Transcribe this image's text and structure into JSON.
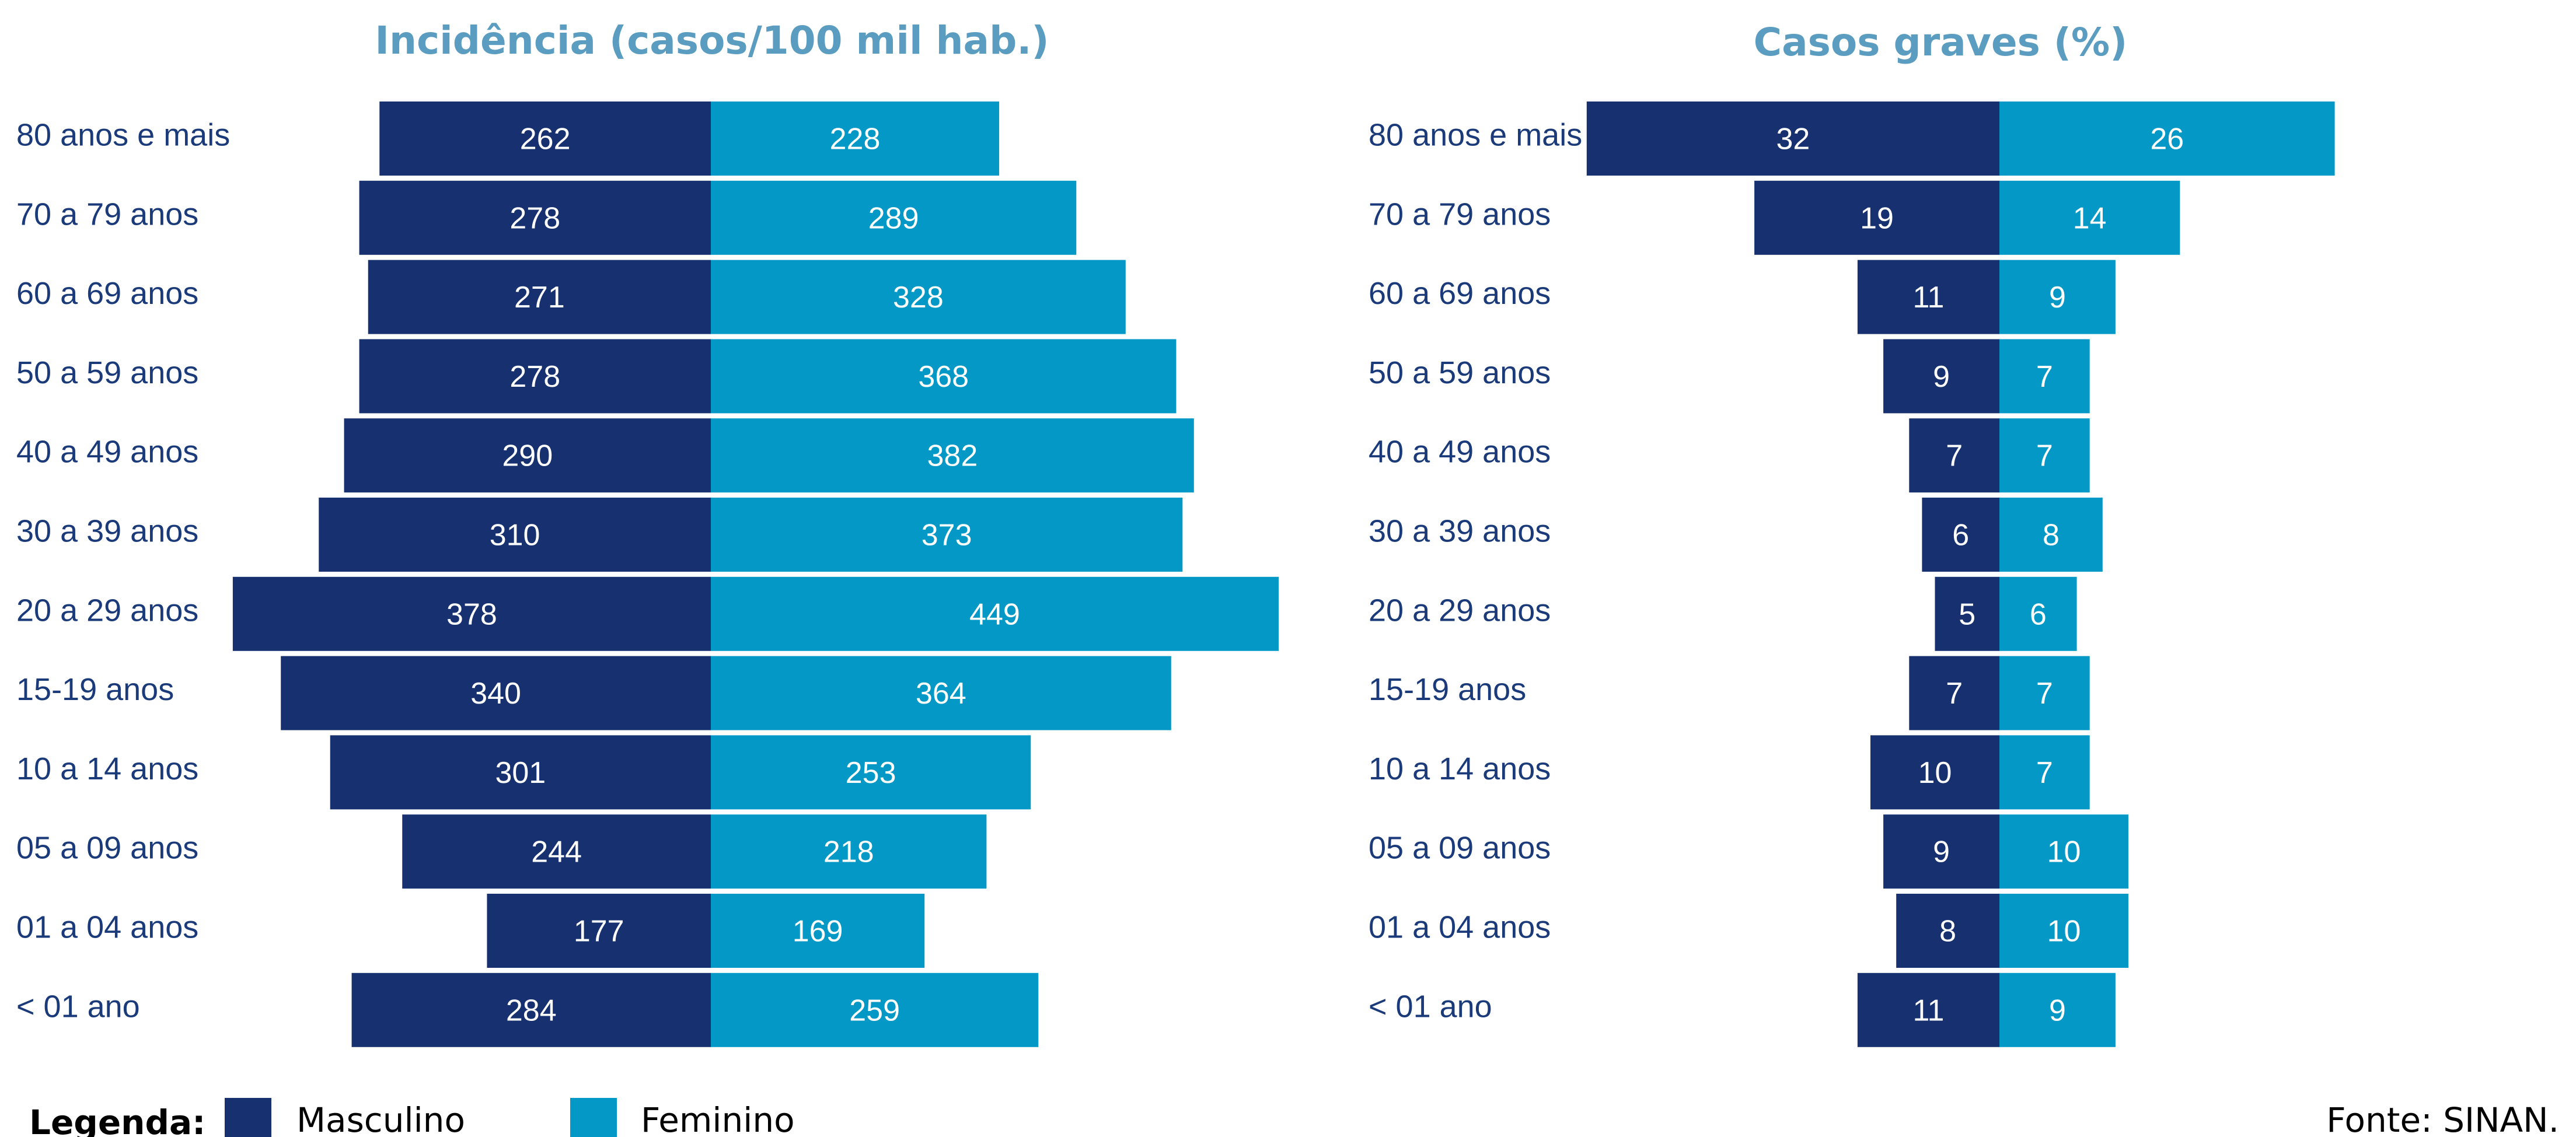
{
  "colors": {
    "male": "#17306f",
    "female": "#0398c6",
    "title": "#5b9dc0",
    "label": "#1a3a7a"
  },
  "legend": {
    "title": "Legenda:",
    "male": "Masculino",
    "female": "Feminino"
  },
  "source": "Fonte: SINAN.",
  "chart_data": [
    {
      "type": "bar",
      "orientation": "horizontal-butterfly",
      "title": "Incidência (casos/100 mil hab.)",
      "categories": [
        "80 anos e mais",
        "70 a 79 anos",
        "60 a 69 anos",
        "50 a 59 anos",
        "40 a 49 anos",
        "30 a 39 anos",
        "20 a 29 anos",
        "15-19 anos",
        "10 a 14 anos",
        "05 a 09 anos",
        "01 a 04 anos",
        "< 01 ano"
      ],
      "series": [
        {
          "name": "Masculino",
          "values": [
            262,
            278,
            271,
            278,
            290,
            310,
            378,
            340,
            301,
            244,
            177,
            284
          ]
        },
        {
          "name": "Feminino",
          "values": [
            228,
            289,
            328,
            368,
            382,
            373,
            449,
            364,
            253,
            218,
            169,
            259
          ]
        }
      ]
    },
    {
      "type": "bar",
      "orientation": "horizontal-butterfly",
      "title": "Casos graves (%)",
      "categories": [
        "80 anos e mais",
        "70 a 79 anos",
        "60 a 69 anos",
        "50 a 59 anos",
        "40 a 49 anos",
        "30 a 39 anos",
        "20 a 29 anos",
        "15-19 anos",
        "10 a 14 anos",
        "05 a 09 anos",
        "01 a 04 anos",
        "< 01 ano"
      ],
      "series": [
        {
          "name": "Masculino",
          "values": [
            32,
            19,
            11,
            9,
            7,
            6,
            5,
            7,
            10,
            9,
            8,
            11
          ]
        },
        {
          "name": "Feminino",
          "values": [
            26,
            14,
            9,
            7,
            7,
            8,
            6,
            7,
            7,
            10,
            10,
            9
          ]
        }
      ]
    }
  ]
}
